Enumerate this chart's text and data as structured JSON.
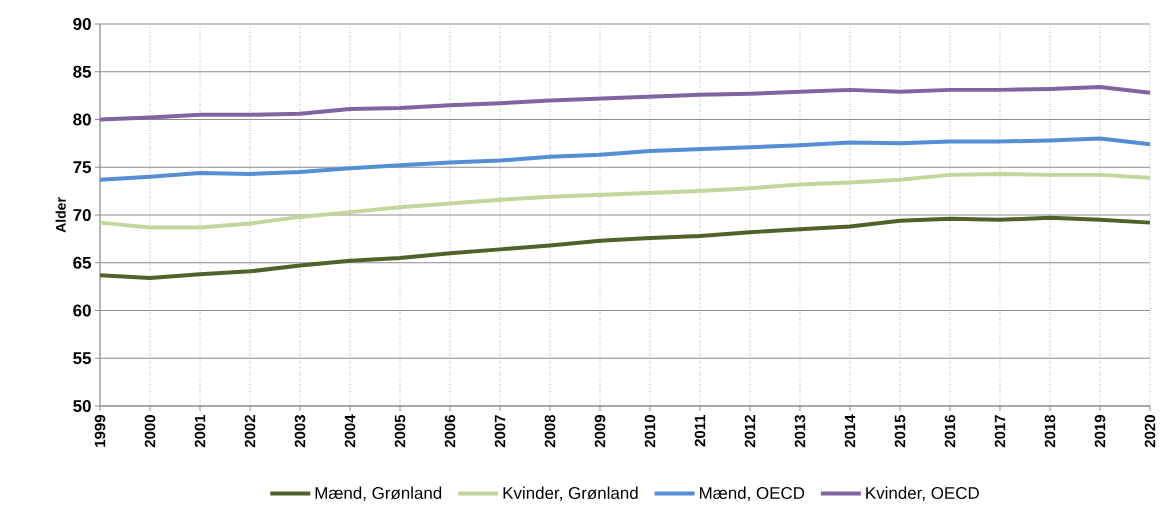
{
  "chart_data": {
    "type": "line",
    "ylabel": "Alder",
    "categories": [
      "1999",
      "2000",
      "2001",
      "2002",
      "2003",
      "2004",
      "2005",
      "2006",
      "2007",
      "2008",
      "2009",
      "2010",
      "2011",
      "2012",
      "2013",
      "2014",
      "2015",
      "2016",
      "2017",
      "2018",
      "2019",
      "2020"
    ],
    "series": [
      {
        "name": "Mænd, Grønland",
        "color": "#4f6228",
        "values": [
          63.7,
          63.4,
          63.8,
          64.1,
          64.7,
          65.2,
          65.5,
          66.0,
          66.4,
          66.8,
          67.3,
          67.6,
          67.8,
          68.2,
          68.5,
          68.8,
          69.4,
          69.6,
          69.5,
          69.7,
          69.5,
          69.2
        ]
      },
      {
        "name": "Kvinder, Grønland",
        "color": "#c3d69b",
        "values": [
          69.2,
          68.7,
          68.7,
          69.1,
          69.8,
          70.3,
          70.8,
          71.2,
          71.6,
          71.9,
          72.1,
          72.3,
          72.5,
          72.8,
          73.2,
          73.4,
          73.7,
          74.2,
          74.3,
          74.2,
          74.2,
          73.9
        ]
      },
      {
        "name": "Mænd, OECD",
        "color": "#558ed5",
        "values": [
          73.7,
          74.0,
          74.4,
          74.3,
          74.5,
          74.9,
          75.2,
          75.5,
          75.7,
          76.1,
          76.3,
          76.7,
          76.9,
          77.1,
          77.3,
          77.6,
          77.5,
          77.7,
          77.7,
          77.8,
          78.0,
          77.4
        ]
      },
      {
        "name": "Kvinder, OECD",
        "color": "#8064a2",
        "values": [
          80.0,
          80.2,
          80.5,
          80.5,
          80.6,
          81.1,
          81.2,
          81.5,
          81.7,
          82.0,
          82.2,
          82.4,
          82.6,
          82.7,
          82.9,
          83.1,
          82.9,
          83.1,
          83.1,
          83.2,
          83.4,
          82.8
        ]
      }
    ],
    "ylim": [
      50,
      90
    ],
    "yticks": [
      50,
      55,
      60,
      65,
      70,
      75,
      80,
      85,
      90
    ],
    "grid": true,
    "legend": "bottom",
    "marker": "none",
    "line_style": "solid"
  }
}
